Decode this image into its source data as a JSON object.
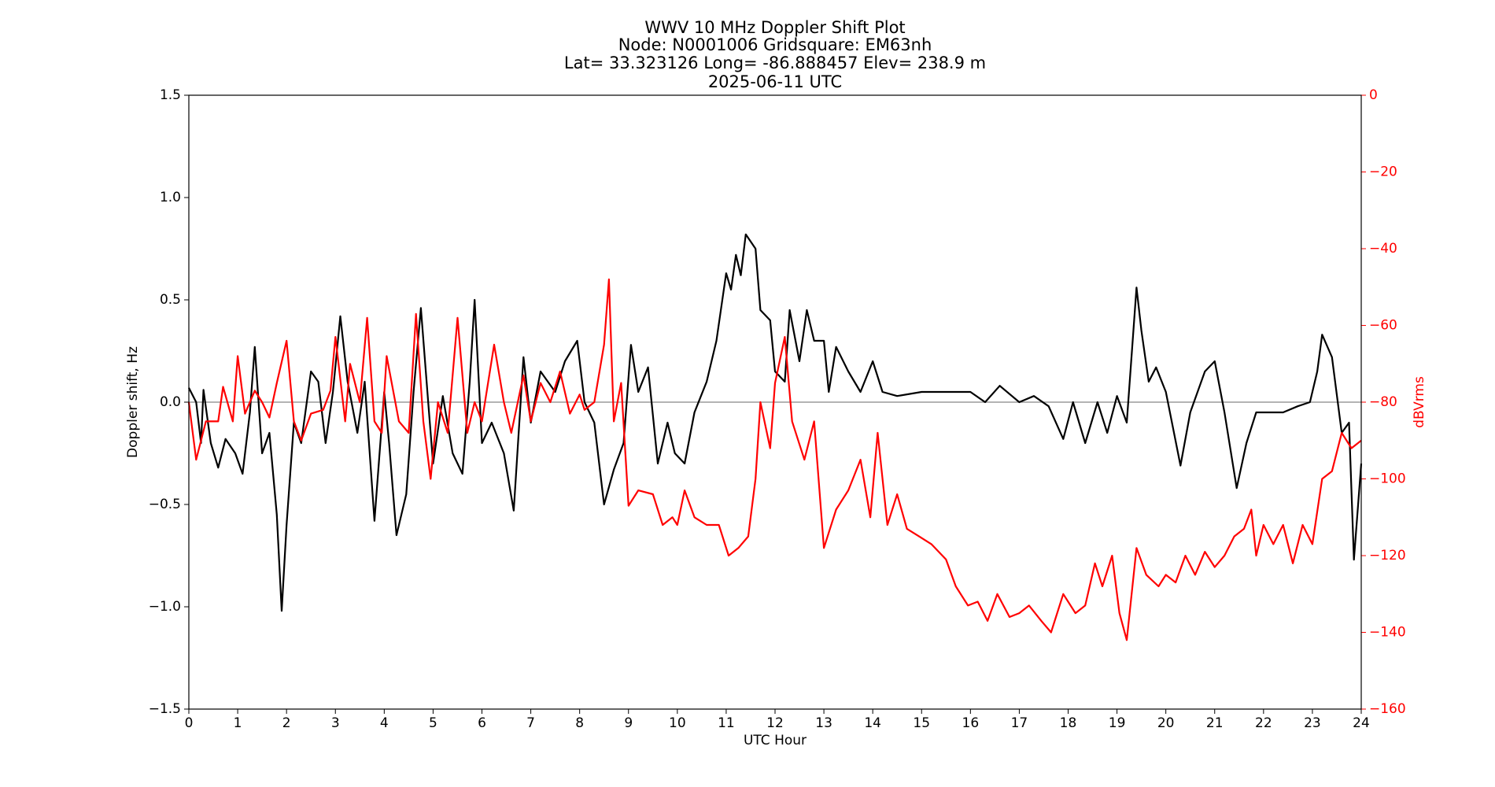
{
  "chart_data": {
    "type": "line",
    "title": [
      "WWV 10 MHz Doppler Shift Plot",
      "Node:  N0001006     Gridsquare:  EM63nh",
      "Lat= 33.323126    Long= -86.888457    Elev= 238.9 m",
      "2025-06-11  UTC"
    ],
    "xlabel": "UTC Hour",
    "ylabel": "Doppler shift, Hz",
    "y2label": "dBVrms",
    "y2color": "#ff0000",
    "xlim": [
      0,
      24
    ],
    "xticks": [
      0,
      1,
      2,
      3,
      4,
      5,
      6,
      7,
      8,
      9,
      10,
      11,
      12,
      13,
      14,
      15,
      16,
      17,
      18,
      19,
      20,
      21,
      22,
      23,
      24
    ],
    "ylim": [
      -1.5,
      1.5
    ],
    "yticks": [
      {
        "value": -1.5,
        "label": "−1.5"
      },
      {
        "value": -1.0,
        "label": "−1.0"
      },
      {
        "value": -0.5,
        "label": "−0.5"
      },
      {
        "value": 0,
        "label": "0.0"
      },
      0.5,
      {
        "value": 1.0,
        "label": "1.0"
      },
      1.5
    ],
    "y2lim": [
      -160,
      0
    ],
    "y2ticks": [
      {
        "value": -160,
        "label": "−160"
      },
      {
        "value": -140,
        "label": "−140"
      },
      {
        "value": -120,
        "label": "−120"
      },
      {
        "value": -100,
        "label": "−100"
      },
      {
        "value": -80,
        "label": "−80"
      },
      {
        "value": -60,
        "label": "−60"
      },
      {
        "value": -40,
        "label": "−40"
      },
      {
        "value": -20,
        "label": "−20"
      },
      0
    ],
    "hline": {
      "value": 0,
      "color": "#888888"
    },
    "series": [
      {
        "color": "#000000",
        "x": [
          0,
          0.15,
          0.25,
          0.3,
          0.45,
          0.6,
          0.75,
          0.95,
          1.1,
          1.25,
          1.35,
          1.5,
          1.65,
          1.8,
          1.9,
          2.0,
          2.15,
          2.3,
          2.5,
          2.65,
          2.8,
          2.95,
          3.1,
          3.25,
          3.45,
          3.6,
          3.8,
          4.0,
          4.1,
          4.25,
          4.45,
          4.6,
          4.75,
          4.9,
          5.0,
          5.2,
          5.4,
          5.6,
          5.75,
          5.85,
          6.0,
          6.2,
          6.45,
          6.65,
          6.85,
          7.0,
          7.2,
          7.5,
          7.7,
          7.95,
          8.1,
          8.3,
          8.5,
          8.7,
          8.9,
          9.05,
          9.2,
          9.4,
          9.6,
          9.8,
          9.95,
          10.15,
          10.35,
          10.6,
          10.8,
          11.0,
          11.1,
          11.2,
          11.3,
          11.4,
          11.6,
          11.7,
          11.9,
          12.0,
          12.2,
          12.3,
          12.5,
          12.65,
          12.8,
          13.0,
          13.1,
          13.25,
          13.5,
          13.75,
          14.0,
          14.2,
          14.5,
          15,
          15.5,
          16,
          16.3,
          16.6,
          17,
          17.3,
          17.6,
          17.9,
          18.1,
          18.35,
          18.6,
          18.8,
          19.0,
          19.2,
          19.4,
          19.5,
          19.65,
          19.8,
          20.0,
          20.3,
          20.5,
          20.8,
          21.0,
          21.2,
          21.45,
          21.65,
          21.85,
          22.1,
          22.4,
          22.7,
          22.95,
          23.1,
          23.2,
          23.4,
          23.6,
          23.75,
          23.85,
          24.0
        ],
        "values": [
          0.07,
          0.0,
          -0.2,
          0.06,
          -0.2,
          -0.32,
          -0.18,
          -0.25,
          -0.35,
          -0.05,
          0.27,
          -0.25,
          -0.15,
          -0.55,
          -1.02,
          -0.6,
          -0.1,
          -0.2,
          0.15,
          0.1,
          -0.2,
          0.05,
          0.42,
          0.1,
          -0.15,
          0.1,
          -0.58,
          0.05,
          -0.2,
          -0.65,
          -0.45,
          0.05,
          0.46,
          0.0,
          -0.3,
          0.03,
          -0.25,
          -0.35,
          0.1,
          0.5,
          -0.2,
          -0.1,
          -0.25,
          -0.53,
          0.22,
          -0.1,
          0.15,
          0.05,
          0.2,
          0.3,
          0.0,
          -0.1,
          -0.5,
          -0.33,
          -0.2,
          0.28,
          0.05,
          0.17,
          -0.3,
          -0.1,
          -0.25,
          -0.3,
          -0.05,
          0.1,
          0.3,
          0.63,
          0.55,
          0.72,
          0.62,
          0.82,
          0.75,
          0.45,
          0.4,
          0.15,
          0.1,
          0.45,
          0.2,
          0.45,
          0.3,
          0.3,
          0.05,
          0.27,
          0.15,
          0.05,
          0.2,
          0.05,
          0.03,
          0.05,
          0.05,
          0.05,
          0.0,
          0.08,
          0.0,
          0.03,
          -0.02,
          -0.18,
          0.0,
          -0.2,
          0.0,
          -0.15,
          0.03,
          -0.1,
          0.56,
          0.35,
          0.1,
          0.17,
          0.05,
          -0.31,
          -0.05,
          0.15,
          0.2,
          -0.05,
          -0.42,
          -0.2,
          -0.05,
          -0.05,
          -0.05,
          -0.02,
          0.0,
          0.15,
          0.33,
          0.22,
          -0.15,
          -0.1,
          -0.77,
          -0.3
        ]
      },
      {
        "color": "#ff0000",
        "axis": "y2",
        "x": [
          0,
          0.15,
          0.35,
          0.6,
          0.7,
          0.9,
          1.0,
          1.15,
          1.35,
          1.5,
          1.65,
          1.8,
          2.0,
          2.15,
          2.3,
          2.5,
          2.75,
          2.9,
          3.0,
          3.2,
          3.3,
          3.5,
          3.65,
          3.8,
          3.95,
          4.05,
          4.3,
          4.5,
          4.65,
          4.8,
          4.95,
          5.1,
          5.3,
          5.5,
          5.7,
          5.85,
          6.0,
          6.25,
          6.45,
          6.6,
          6.85,
          7.0,
          7.2,
          7.4,
          7.6,
          7.8,
          8.0,
          8.1,
          8.3,
          8.5,
          8.6,
          8.7,
          8.85,
          9.0,
          9.2,
          9.5,
          9.7,
          9.9,
          10.0,
          10.15,
          10.35,
          10.6,
          10.85,
          11.05,
          11.25,
          11.45,
          11.6,
          11.7,
          11.9,
          12.0,
          12.2,
          12.35,
          12.6,
          12.8,
          13.0,
          13.25,
          13.5,
          13.75,
          13.95,
          14.1,
          14.3,
          14.5,
          14.7,
          14.95,
          15.2,
          15.5,
          15.7,
          15.95,
          16.15,
          16.35,
          16.55,
          16.8,
          17.0,
          17.2,
          17.45,
          17.65,
          17.9,
          18.15,
          18.35,
          18.55,
          18.7,
          18.9,
          19.05,
          19.2,
          19.4,
          19.6,
          19.85,
          20.0,
          20.2,
          20.4,
          20.6,
          20.8,
          21.0,
          21.2,
          21.4,
          21.6,
          21.75,
          21.85,
          22.0,
          22.2,
          22.4,
          22.6,
          22.8,
          23.0,
          23.2,
          23.4,
          23.6,
          23.8,
          24.0
        ],
        "values": [
          -80,
          -95,
          -85,
          -85,
          -76,
          -85,
          -68,
          -83,
          -77,
          -80,
          -84,
          -75,
          -64,
          -85,
          -90,
          -83,
          -82,
          -77,
          -63,
          -85,
          -70,
          -80,
          -58,
          -85,
          -88,
          -68,
          -85,
          -88,
          -57,
          -85,
          -100,
          -80,
          -88,
          -58,
          -88,
          -80,
          -85,
          -65,
          -80,
          -88,
          -73,
          -85,
          -75,
          -80,
          -72,
          -83,
          -78,
          -82,
          -80,
          -65,
          -48,
          -85,
          -75,
          -107,
          -103,
          -104,
          -112,
          -110,
          -112,
          -103,
          -110,
          -112,
          -112,
          -120,
          -118,
          -115,
          -100,
          -80,
          -92,
          -75,
          -63,
          -85,
          -95,
          -85,
          -118,
          -108,
          -103,
          -95,
          -110,
          -88,
          -112,
          -104,
          -113,
          -115,
          -117,
          -121,
          -128,
          -133,
          -132,
          -137,
          -130,
          -136,
          -135,
          -133,
          -137,
          -140,
          -130,
          -135,
          -133,
          -122,
          -128,
          -120,
          -135,
          -142,
          -118,
          -125,
          -128,
          -125,
          -127,
          -120,
          -125,
          -119,
          -123,
          -120,
          -115,
          -113,
          -108,
          -120,
          -112,
          -117,
          -112,
          -122,
          -112,
          -117,
          -100,
          -98,
          -88,
          -92,
          -90
        ]
      }
    ]
  }
}
